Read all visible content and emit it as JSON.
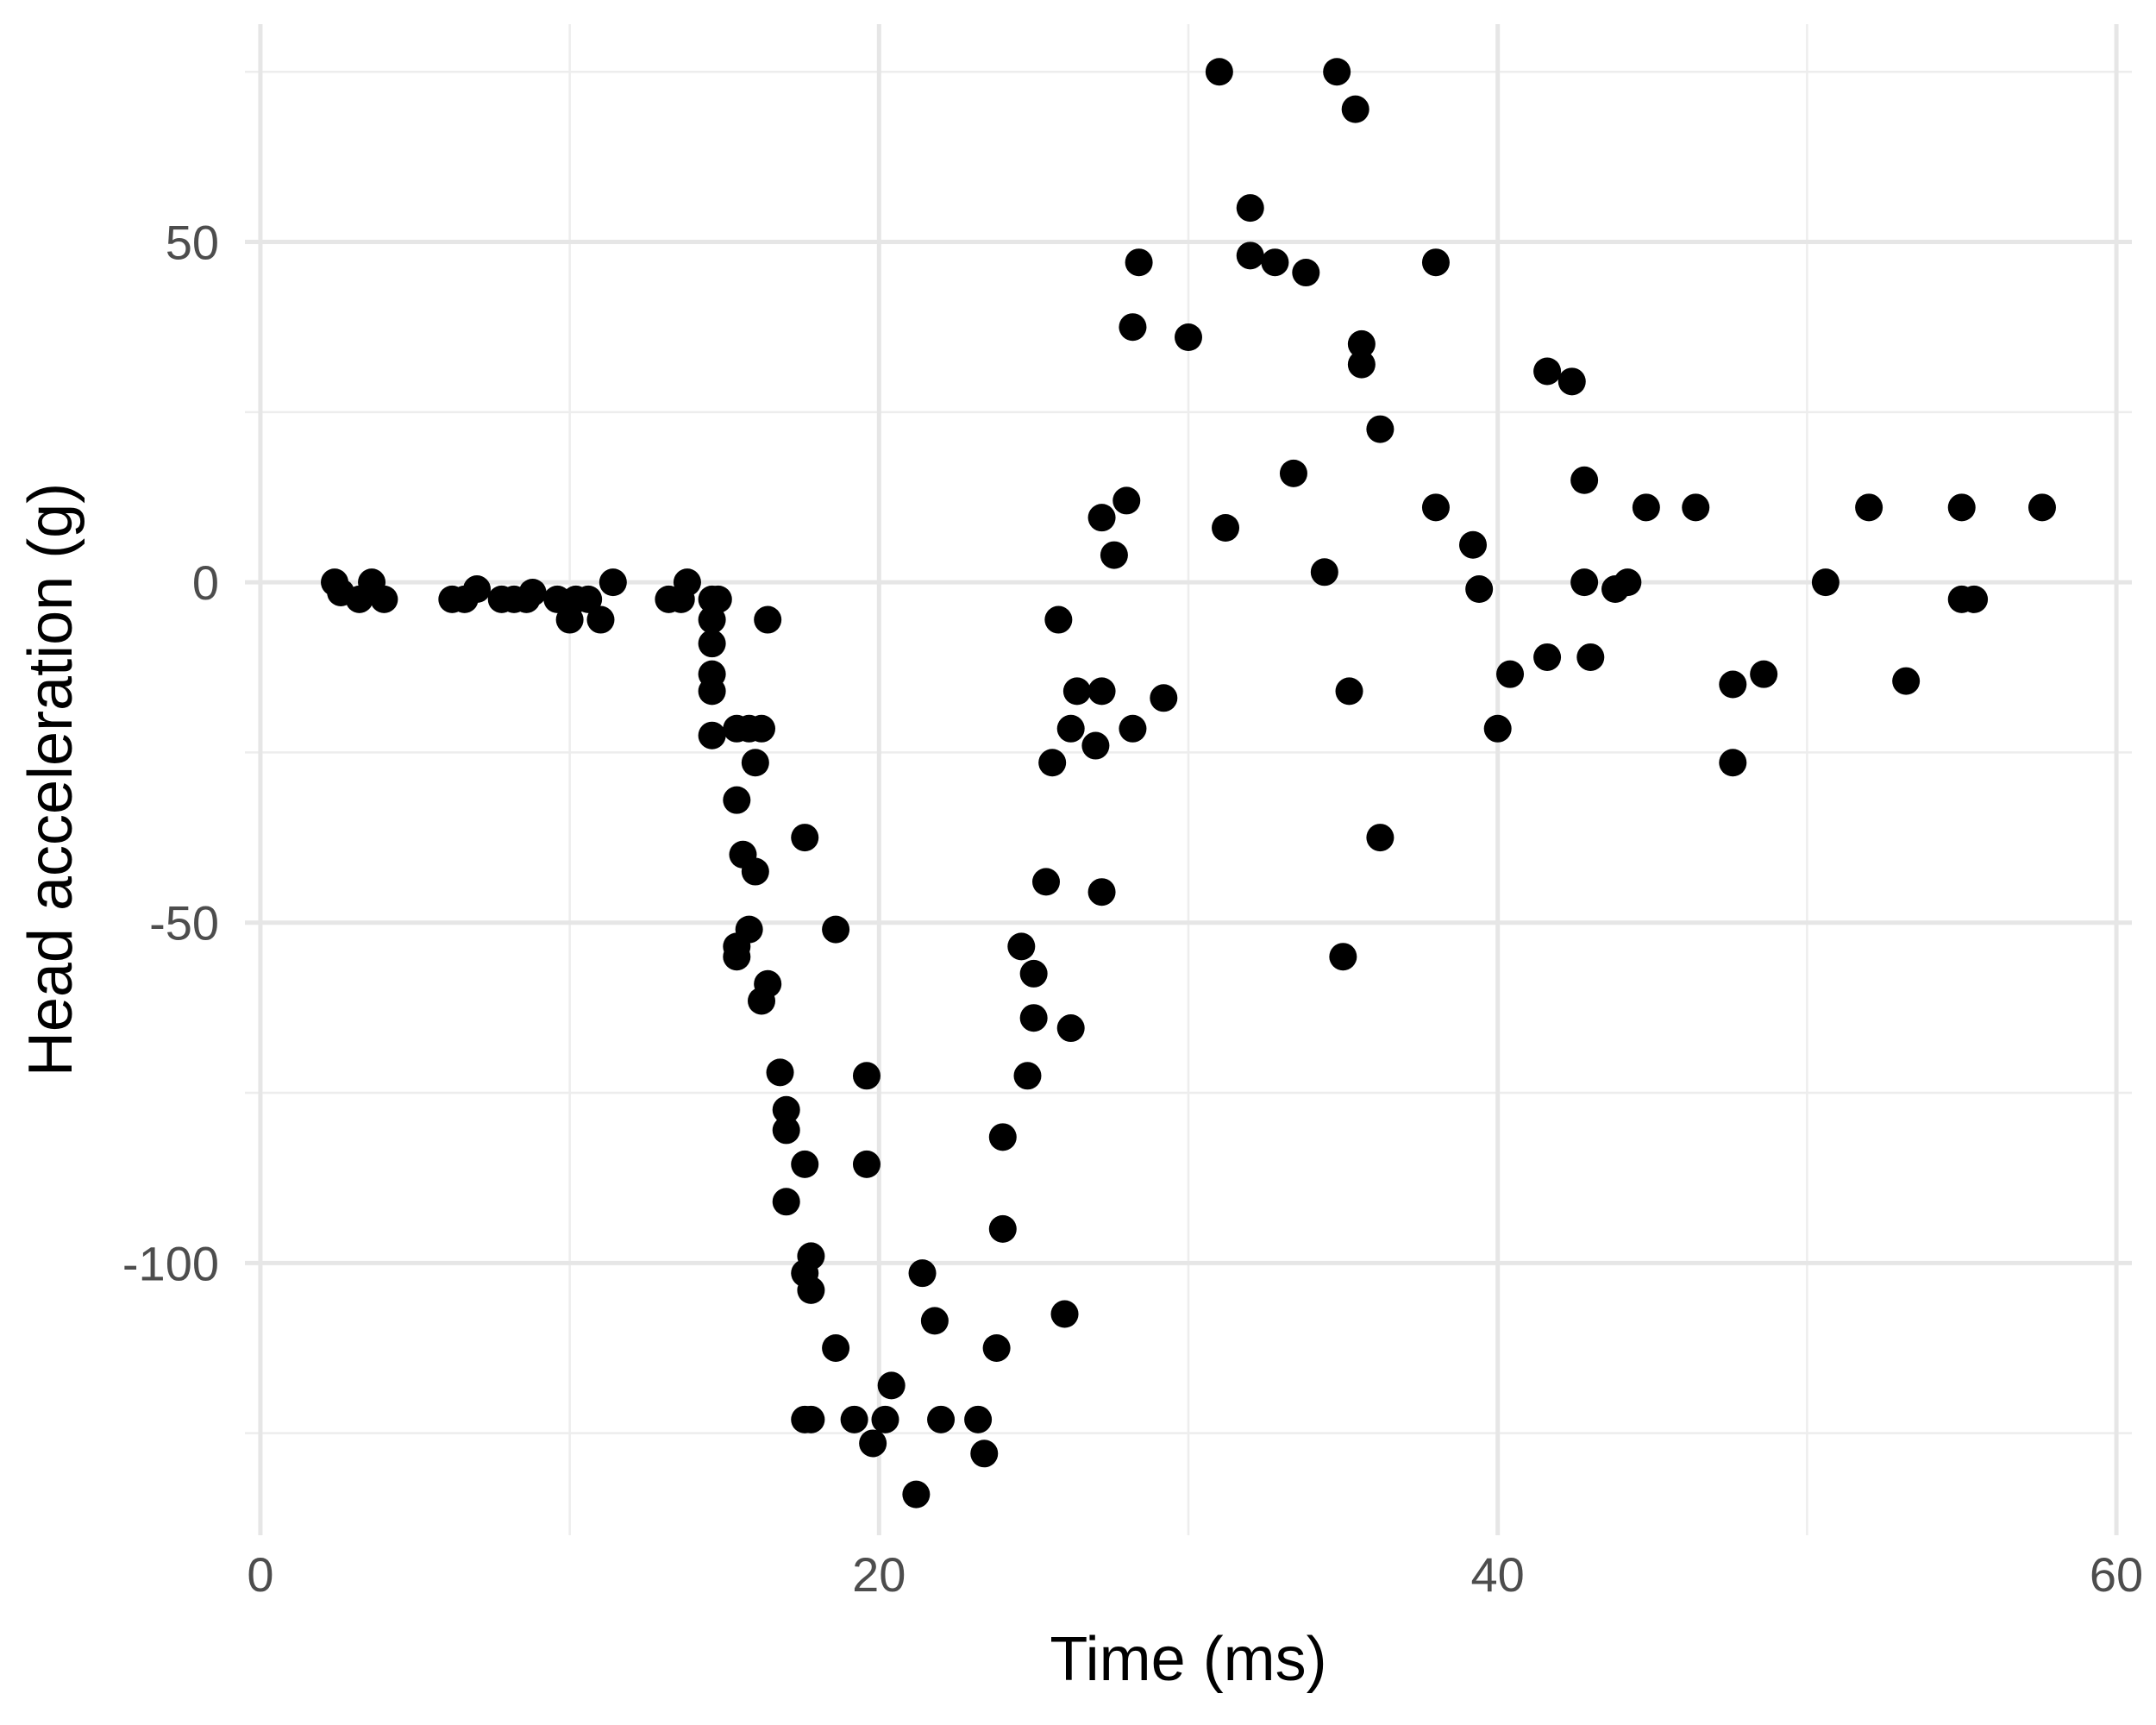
{
  "chart_data": {
    "type": "scatter",
    "title": "",
    "xlabel": "Time (ms)",
    "ylabel": "Head acceleration (g)",
    "xlim": [
      -0.5,
      60.5
    ],
    "ylim": [
      -140,
      82
    ],
    "x_ticks": [
      0,
      20,
      40,
      60
    ],
    "x_tick_labels": [
      "0",
      "20",
      "40",
      "60"
    ],
    "x_minor_ticks": [
      10,
      30,
      50
    ],
    "y_ticks": [
      -100,
      -50,
      0,
      50
    ],
    "y_tick_labels": [
      "-100",
      "-50",
      "0",
      "50"
    ],
    "y_minor_ticks": [
      -125,
      -75,
      -25,
      25,
      75
    ],
    "grid": true,
    "legend": "none",
    "point_color": "#000000",
    "x": [
      2.4,
      2.6,
      3.2,
      3.6,
      4.0,
      6.2,
      6.6,
      7.0,
      7.8,
      8.2,
      8.8,
      8.6,
      9.6,
      10.0,
      10.2,
      10.6,
      11.0,
      11.4,
      13.2,
      13.6,
      13.8,
      14.6,
      14.6,
      14.6,
      14.6,
      14.6,
      14.6,
      14.8,
      15.4,
      15.4,
      15.6,
      15.8,
      15.4,
      15.4,
      15.8,
      16.0,
      16.0,
      16.2,
      16.2,
      16.4,
      16.8,
      17.0,
      16.4,
      17.0,
      17.0,
      17.6,
      17.6,
      17.6,
      17.8,
      17.8,
      17.8,
      18.6,
      18.6,
      17.6,
      19.2,
      19.6,
      19.6,
      19.8,
      20.2,
      20.4,
      21.2,
      21.4,
      21.8,
      22.0,
      23.2,
      23.8,
      23.4,
      24.0,
      24.0,
      24.6,
      25.0,
      25.0,
      24.8,
      25.4,
      25.6,
      25.8,
      26.0,
      26.2,
      26.2,
      26.4,
      27.0,
      27.2,
      27.2,
      27.2,
      27.6,
      28.0,
      28.2,
      28.2,
      28.4,
      29.2,
      30.0,
      31.0,
      31.2,
      32.0,
      32.0,
      32.8,
      33.4,
      33.8,
      34.4,
      34.8,
      35.0,
      35.2,
      35.4,
      35.6,
      35.6,
      36.2,
      36.2,
      38.0,
      38.0,
      39.2,
      39.4,
      40.0,
      40.4,
      41.6,
      41.6,
      42.4,
      42.8,
      42.8,
      43.0,
      43.8,
      44.2,
      44.8,
      46.4,
      47.6,
      47.6,
      48.6,
      50.6,
      52.0,
      53.2,
      55.0,
      55.0,
      55.4,
      57.6
    ],
    "y": [
      0,
      -1.5,
      -2.5,
      0,
      -2.5,
      -2.5,
      -2.5,
      -1,
      -2.5,
      -2.5,
      -1.5,
      -2.5,
      -2.5,
      -5.5,
      -2.5,
      -2.5,
      -5.5,
      0,
      -2.5,
      -2.5,
      0,
      -5.5,
      -9,
      -13.5,
      -16,
      -22.5,
      -2.5,
      -2.5,
      -21.5,
      -32,
      -40,
      -51,
      -53.5,
      -55,
      -21.5,
      -26.5,
      -42.5,
      -21.5,
      -61.5,
      -5.5,
      -72,
      -91,
      -59,
      -77.5,
      -80.5,
      -37.5,
      -85.5,
      -101.5,
      -99,
      -104,
      -123,
      -51,
      -112.5,
      -123,
      -123,
      -72.5,
      -85.5,
      -126.5,
      -123,
      -118,
      -134,
      -101.5,
      -108.5,
      -123,
      -123,
      -112.5,
      -128,
      -81.5,
      -95,
      -53.5,
      -57.5,
      -64,
      -72.5,
      -44,
      -26.5,
      -5.5,
      -107.5,
      -21.5,
      -65.5,
      -16,
      -24,
      -45.5,
      -16,
      9.5,
      4,
      12,
      -21.5,
      37.5,
      47,
      -17,
      36,
      75,
      8,
      48,
      55,
      47,
      16,
      45.5,
      1.5,
      75,
      -55,
      -16,
      69.5,
      35,
      32,
      22.5,
      -37.5,
      47,
      11,
      5.5,
      -1,
      -21.5,
      -13.5,
      31,
      -11,
      29.5,
      0,
      15,
      -11,
      -1,
      0,
      11,
      11,
      -15,
      -26.5,
      -13.5,
      0,
      11,
      -14.5,
      11,
      -2.5,
      -2.5,
      11
    ]
  }
}
